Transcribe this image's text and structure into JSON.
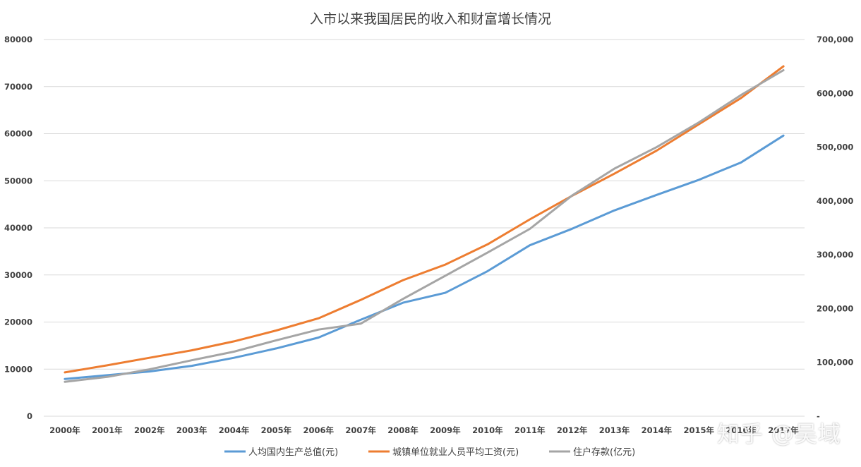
{
  "chart_data": {
    "type": "line",
    "title": "入市以来我国居民的收入和财富增长情况",
    "categories": [
      "2000年",
      "2001年",
      "2002年",
      "2003年",
      "2004年",
      "2005年",
      "2006年",
      "2007年",
      "2008年",
      "2009年",
      "2010年",
      "2011年",
      "2012年",
      "2013年",
      "2014年",
      "2015年",
      "2016年",
      "2017年"
    ],
    "y_left": {
      "min": 0,
      "max": 80000,
      "ticks": [
        "0",
        "10000",
        "20000",
        "30000",
        "40000",
        "50000",
        "60000",
        "70000",
        "80000"
      ]
    },
    "y_right": {
      "min": 0,
      "max": 700000,
      "ticks": [
        "-",
        "100,000",
        "200,000",
        "300,000",
        "400,000",
        "500,000",
        "600,000",
        "700,000"
      ]
    },
    "series": [
      {
        "name": "人均国内生产总值(元)",
        "axis": "left",
        "color": "#5b9bd5",
        "values": [
          7900,
          8700,
          9500,
          10700,
          12400,
          14400,
          16700,
          20500,
          24100,
          26200,
          30800,
          36300,
          39800,
          43700,
          47000,
          50200,
          53900,
          59600
        ]
      },
      {
        "name": "城镇单位就业人员平均工资(元)",
        "axis": "left",
        "color": "#ed7d31",
        "values": [
          9300,
          10800,
          12400,
          14000,
          15900,
          18200,
          20800,
          24700,
          28900,
          32200,
          36500,
          41800,
          46800,
          51500,
          56400,
          62000,
          67600,
          74300
        ]
      },
      {
        "name": "住户存款(亿元)",
        "axis": "right",
        "color": "#a5a5a5",
        "values": [
          64000,
          73000,
          87000,
          104000,
          120000,
          141000,
          161000,
          172000,
          218000,
          261000,
          304000,
          348000,
          410000,
          460000,
          500000,
          546000,
          597000,
          643000
        ]
      }
    ]
  },
  "watermark": "知乎 @吴域"
}
